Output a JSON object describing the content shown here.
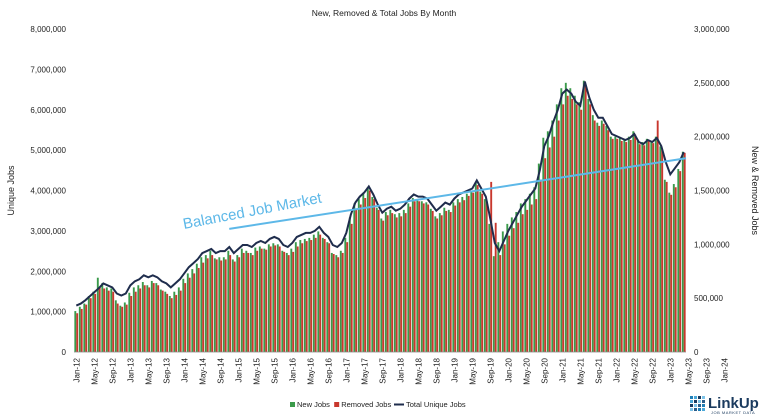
{
  "chart_data": {
    "type": "bar",
    "title": "New, Removed & Total Jobs By Month",
    "ylabel_left": "Unique Jobs",
    "ylabel_right": "New & Removed Jobs",
    "ylim_left": [
      0,
      8000000
    ],
    "ylim_right": [
      0,
      3000000
    ],
    "yticks_left": [
      "0",
      "1,000,000",
      "2,000,000",
      "3,000,000",
      "4,000,000",
      "5,000,000",
      "6,000,000",
      "7,000,000",
      "8,000,000"
    ],
    "yticks_right": [
      "0",
      "500,000",
      "1,000,000",
      "1,500,000",
      "2,000,000",
      "2,500,000",
      "3,000,000"
    ],
    "xticks": [
      "Jan-12",
      "May-12",
      "Sep-12",
      "Jan-13",
      "May-13",
      "Sep-13",
      "Jan-14",
      "May-14",
      "Sep-14",
      "Jan-15",
      "May-15",
      "Sep-15",
      "Jan-16",
      "May-16",
      "Sep-16",
      "Jan-17",
      "May-17",
      "Sep-17",
      "Jan-18",
      "May-18",
      "Sep-18",
      "Jan-19",
      "May-19",
      "Sep-19",
      "Jan-20",
      "May-20",
      "Sep-20",
      "Jan-21",
      "May-21",
      "Sep-21",
      "Jan-22",
      "May-22",
      "Sep-22",
      "Jan-23",
      "May-23",
      "Sep-23",
      "Jan-24"
    ],
    "series": [
      {
        "name": "New Jobs",
        "color": "#3a9a4a",
        "axis": "right",
        "values": [
          380000,
          420000,
          450000,
          520000,
          560000,
          690000,
          640000,
          600000,
          590000,
          480000,
          430000,
          460000,
          550000,
          600000,
          620000,
          650000,
          620000,
          660000,
          640000,
          580000,
          560000,
          520000,
          560000,
          600000,
          680000,
          730000,
          770000,
          820000,
          880000,
          900000,
          940000,
          870000,
          880000,
          880000,
          940000,
          860000,
          900000,
          960000,
          940000,
          920000,
          970000,
          980000,
          960000,
          1000000,
          1010000,
          1000000,
          940000,
          920000,
          960000,
          1020000,
          1040000,
          1050000,
          1060000,
          1090000,
          1120000,
          1060000,
          1020000,
          920000,
          900000,
          940000,
          1060000,
          1250000,
          1380000,
          1420000,
          1480000,
          1530000,
          1440000,
          1340000,
          1240000,
          1300000,
          1320000,
          1280000,
          1290000,
          1320000,
          1380000,
          1430000,
          1420000,
          1400000,
          1390000,
          1330000,
          1260000,
          1290000,
          1340000,
          1320000,
          1390000,
          1420000,
          1440000,
          1470000,
          1500000,
          1580000,
          1490000,
          1420000,
          1190000,
          890000,
          1020000,
          1120000,
          1190000,
          1250000,
          1300000,
          1380000,
          1420000,
          1470000,
          1530000,
          1750000,
          1990000,
          2050000,
          2150000,
          2300000,
          2450000,
          2500000,
          2450000,
          2380000,
          2320000,
          2520000,
          2350000,
          2200000,
          2130000,
          2150000,
          2100000,
          2000000,
          2000000,
          1990000,
          1980000,
          2000000,
          2050000,
          1960000,
          1950000,
          1980000,
          1960000,
          2000000,
          1910000,
          1600000,
          1480000,
          1560000,
          1700000,
          1860000
        ]
      },
      {
        "name": "Removed Jobs",
        "color": "#c8372d",
        "axis": "right",
        "values": [
          360000,
          400000,
          440000,
          500000,
          540000,
          600000,
          590000,
          570000,
          560000,
          450000,
          420000,
          440000,
          520000,
          560000,
          590000,
          620000,
          600000,
          640000,
          620000,
          570000,
          540000,
          500000,
          530000,
          570000,
          640000,
          690000,
          730000,
          780000,
          830000,
          870000,
          900000,
          860000,
          850000,
          860000,
          900000,
          840000,
          880000,
          920000,
          920000,
          900000,
          940000,
          960000,
          950000,
          980000,
          990000,
          980000,
          930000,
          900000,
          930000,
          980000,
          1010000,
          1030000,
          1040000,
          1060000,
          1090000,
          1050000,
          1010000,
          910000,
          880000,
          920000,
          1020000,
          1190000,
          1320000,
          1370000,
          1430000,
          1500000,
          1420000,
          1320000,
          1220000,
          1270000,
          1290000,
          1250000,
          1260000,
          1290000,
          1350000,
          1400000,
          1400000,
          1380000,
          1370000,
          1310000,
          1240000,
          1270000,
          1310000,
          1300000,
          1360000,
          1390000,
          1410000,
          1450000,
          1480000,
          1550000,
          1470000,
          1400000,
          1580000,
          1200000,
          900000,
          1000000,
          1080000,
          1150000,
          1200000,
          1280000,
          1320000,
          1370000,
          1420000,
          1600000,
          1800000,
          1900000,
          2000000,
          2150000,
          2300000,
          2380000,
          2350000,
          2300000,
          2250000,
          2480000,
          2300000,
          2150000,
          2100000,
          2120000,
          2060000,
          1980000,
          1980000,
          1960000,
          1950000,
          1970000,
          2020000,
          1930000,
          1920000,
          1960000,
          1940000,
          2150000,
          1880000,
          1580000,
          1460000,
          1530000,
          1680000,
          1850000
        ]
      },
      {
        "name": "Total Unique Jobs",
        "color": "#1f2d4d",
        "axis": "left",
        "values": [
          1150000,
          1200000,
          1280000,
          1380000,
          1480000,
          1580000,
          1700000,
          1650000,
          1600000,
          1450000,
          1400000,
          1450000,
          1650000,
          1750000,
          1800000,
          1900000,
          1850000,
          1900000,
          1850000,
          1750000,
          1700000,
          1600000,
          1700000,
          1800000,
          1950000,
          2100000,
          2200000,
          2300000,
          2450000,
          2500000,
          2550000,
          2450000,
          2500000,
          2500000,
          2600000,
          2450000,
          2550000,
          2650000,
          2650000,
          2600000,
          2700000,
          2750000,
          2700000,
          2800000,
          2850000,
          2800000,
          2650000,
          2600000,
          2700000,
          2850000,
          2900000,
          2950000,
          2950000,
          3000000,
          3100000,
          2950000,
          2850000,
          2650000,
          2600000,
          2700000,
          2950000,
          3400000,
          3700000,
          3850000,
          3950000,
          4100000,
          3900000,
          3650000,
          3450000,
          3550000,
          3600000,
          3500000,
          3550000,
          3650000,
          3800000,
          3900000,
          3850000,
          3850000,
          3800000,
          3650000,
          3500000,
          3600000,
          3700000,
          3650000,
          3800000,
          3900000,
          3950000,
          4000000,
          4050000,
          4250000,
          4050000,
          3850000,
          3300000,
          2700000,
          2500000,
          2750000,
          3000000,
          3200000,
          3400000,
          3600000,
          3750000,
          3900000,
          4050000,
          4500000,
          5100000,
          5350000,
          5700000,
          6000000,
          6400000,
          6500000,
          6400000,
          6200000,
          6100000,
          6700000,
          6300000,
          6000000,
          5800000,
          5800000,
          5600000,
          5400000,
          5350000,
          5300000,
          5250000,
          5300000,
          5400000,
          5200000,
          5150000,
          5250000,
          5200000,
          5300000,
          5100000,
          4700000,
          4400000,
          4550000,
          4700000,
          4950000
        ]
      }
    ],
    "trend_line": {
      "label": "Balanced Job Market",
      "color": "#5db8e8",
      "start": [
        "Nov-14",
        3050000
      ],
      "end": [
        "Feb-24",
        4800000
      ]
    },
    "legend": {
      "placement": "bottom-center",
      "entries": [
        "New Jobs",
        "Removed Jobs",
        "Total Unique Jobs"
      ]
    },
    "grid": false
  },
  "logo": {
    "name": "LinkUp",
    "tagline": "JOB MARKET DATA"
  }
}
